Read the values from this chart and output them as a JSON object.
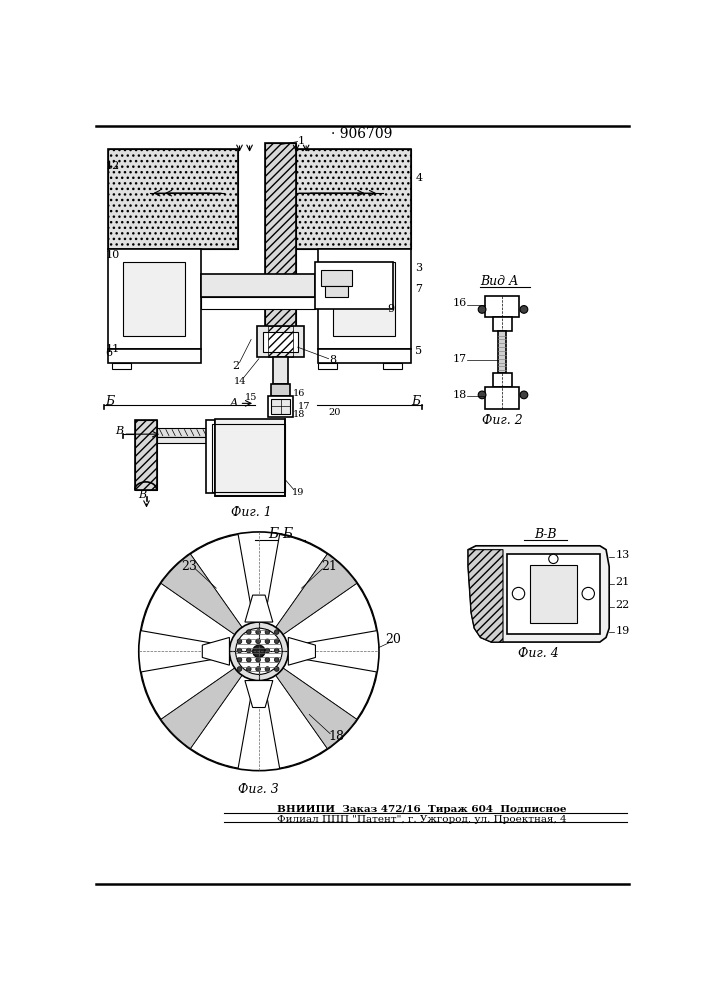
{
  "patent_number": "· 906709",
  "background_color": "#ffffff",
  "line_color": "#000000",
  "footer_line1": "ВНИИПИ  Заказ 472/16  Тираж 604  Подписное",
  "footer_line2": "Филиал ППП \"Патент\", г. Ужгород, ул. Проектная, 4",
  "fig1_label": "Фиг. 1",
  "fig2_label": "Фиг. 2",
  "fig3_label": "Фиг. 3",
  "fig4_label": "Фиг. 4",
  "view_a_label": "Вид А",
  "view_bb_label": "Б-Б",
  "view_vv_label": "В-В"
}
